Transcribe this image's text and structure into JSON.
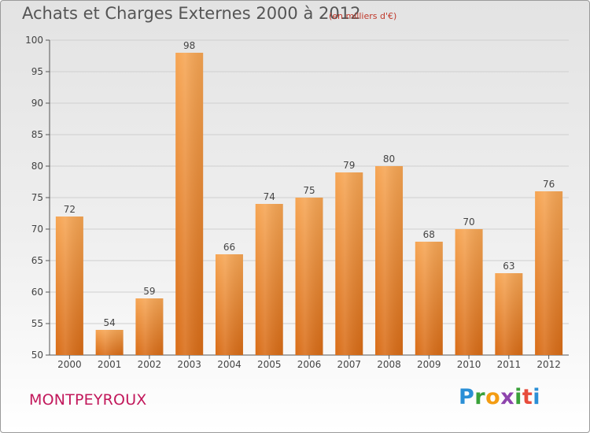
{
  "title": "Achats et Charges Externes 2000 à 2012",
  "subtitle": "(en milliers d'€)",
  "commune": "MONTPEYROUX",
  "brand": {
    "letters": [
      "P",
      "r",
      "o",
      "x",
      "i",
      "t",
      "i"
    ],
    "colors": [
      "#2b8fd6",
      "#3aa13a",
      "#f39c12",
      "#8e44ad",
      "#3aa13a",
      "#e74c3c",
      "#2b8fd6"
    ]
  },
  "colors": {
    "bar_top": "#f6a553",
    "bar_bottom": "#d96c16",
    "axis": "#555555",
    "grid": "#cfcfcf"
  },
  "chart_data": {
    "type": "bar",
    "title": "Achats et Charges Externes 2000 à 2012",
    "subtitle": "(en milliers d'€)",
    "categories": [
      "2000",
      "2001",
      "2002",
      "2003",
      "2004",
      "2005",
      "2006",
      "2007",
      "2008",
      "2009",
      "2010",
      "2011",
      "2012"
    ],
    "values": [
      72,
      54,
      59,
      98,
      66,
      74,
      75,
      79,
      80,
      68,
      70,
      63,
      76
    ],
    "ylim": [
      50,
      100
    ],
    "yticks": [
      50,
      55,
      60,
      65,
      70,
      75,
      80,
      85,
      90,
      95,
      100
    ],
    "xlabel": "",
    "ylabel": "",
    "grid": true,
    "data_labels": true
  }
}
